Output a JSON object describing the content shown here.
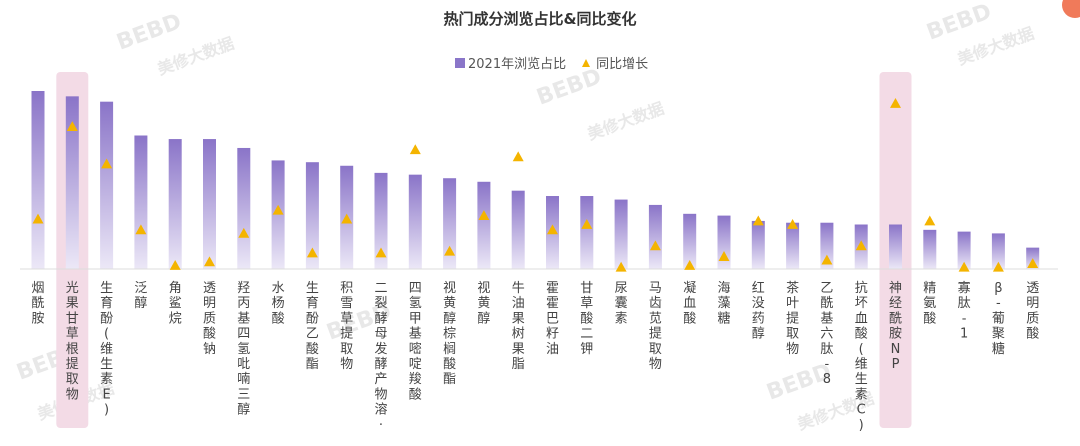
{
  "title": "热门成分浏览占比&同比变化",
  "legend": {
    "bar_label": "2021年浏览占比",
    "marker_label": "同比增长"
  },
  "watermarks": [
    "BEBD",
    "美修大数据"
  ],
  "colors": {
    "bar_top": "#8a74c8",
    "bar_bottom": "#ece8f7",
    "marker": "#f4b400",
    "highlight": "#f3dbe6",
    "axis": "#dcdcdc",
    "corner_dot": "#f07a5a"
  },
  "chart_data": {
    "type": "bar",
    "title": "热门成分浏览占比&同比变化",
    "y_axis_shown": false,
    "grid": false,
    "legend_position": "top",
    "categories": [
      "烟酰胺",
      "光果甘草根提取物",
      "生育酚(维生素E)",
      "泛醇",
      "角鲨烷",
      "透明质酸钠",
      "羟丙基四氢吡喃三醇",
      "水杨酸",
      "生育酚乙酸酯",
      "积雪草提取物",
      "二裂酵母发酵产物溶·",
      "四氢甲基嘧啶羧酸",
      "视黄醇棕榈酸酯",
      "视黄醇",
      "牛油果树果脂",
      "霍霍巴籽油",
      "甘草酸二钾",
      "尿囊素",
      "马齿苋提取物",
      "凝血酸",
      "海藻糖",
      "红没药醇",
      "茶叶提取物",
      "乙酰基六肽-8",
      "抗坏血酸(维生素C)",
      "神经酰胺NP",
      "精氨酸",
      "寡肽-1",
      "β-葡聚糖",
      "透明质酸"
    ],
    "highlighted": [
      "光果甘草根提取物",
      "神经酰胺NP"
    ],
    "series": [
      {
        "name": "2021年浏览占比",
        "type": "bar",
        "values": [
          100,
          97,
          94,
          75,
          73,
          73,
          68,
          61,
          60,
          58,
          54,
          53,
          51,
          49,
          44,
          41,
          41,
          39,
          36,
          31,
          30,
          27,
          26,
          26,
          25,
          25,
          22,
          21,
          20,
          12
        ]
      },
      {
        "name": "同比增长",
        "type": "scatter",
        "values": [
          28,
          80,
          59,
          22,
          2,
          4,
          20,
          33,
          9,
          28,
          9,
          67,
          10,
          30,
          63,
          22,
          25,
          1,
          13,
          2,
          7,
          27,
          25,
          5,
          13,
          93,
          27,
          1,
          1,
          3
        ]
      }
    ]
  }
}
